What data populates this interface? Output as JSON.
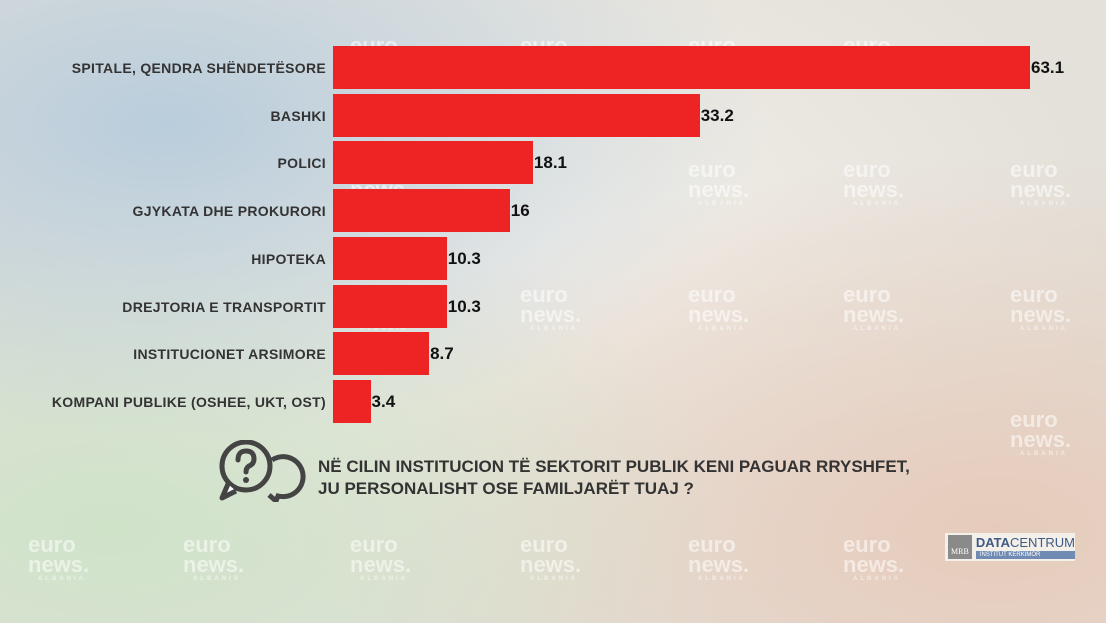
{
  "chart_data": {
    "type": "bar",
    "orientation": "horizontal",
    "categories": [
      "SPITALE, QENDRA SHËNDETËSORE",
      "BASHKI",
      "POLICI",
      "GJYKATA DHE PROKURORI",
      "HIPOTEKA",
      "DREJTORIA E TRANSPORTIT",
      "INSTITUCIONET ARSIMORE",
      "KOMPANI PUBLIKE (OSHEE, UKT, OST)"
    ],
    "values": [
      63.1,
      33.2,
      18.1,
      16,
      10.3,
      10.3,
      8.7,
      3.4
    ],
    "value_labels": [
      "63.1",
      "33.2",
      "18.1",
      "16",
      "10.3",
      "10.3",
      "8.7",
      "3.4"
    ],
    "bar_color": "#ee2424",
    "grid": false
  },
  "question": {
    "line1": "NË CILIN INSTITUCION TË SEKTORIT PUBLIK KENI PAGUAR RRYSHFET,",
    "line2": "JU PERSONALISHT OSE FAMILJARËT TUAJ ?"
  },
  "watermark": {
    "line1": "euro",
    "line2": "news.",
    "line3": "ALBANIA"
  },
  "logo": {
    "mrb": "MRB",
    "data": "DATA",
    "centrum": "CENTRUM",
    "subtitle": "INSTITUT KËRKIMOR"
  }
}
